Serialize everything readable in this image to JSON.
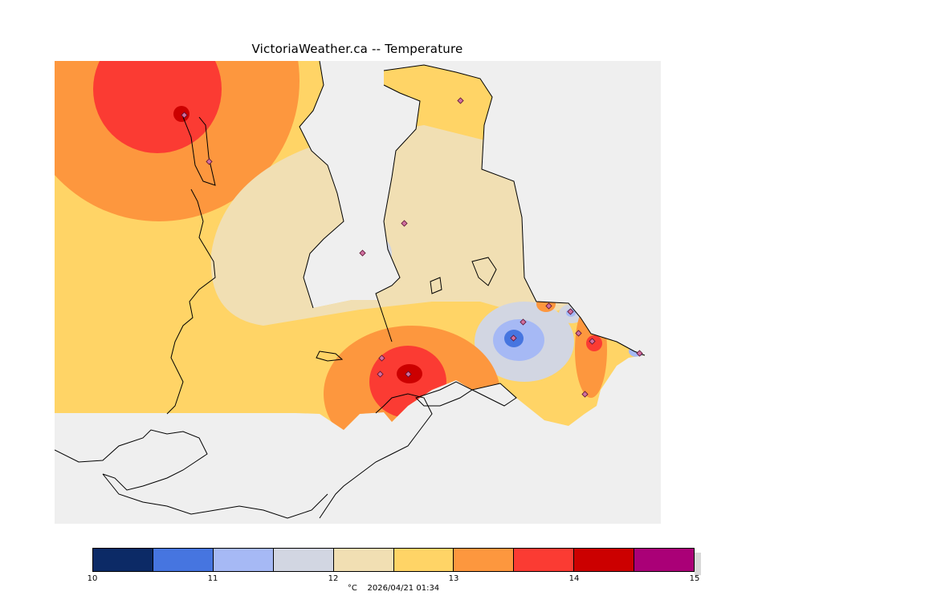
{
  "title": "VictoriaWeather.ca -- Temperature",
  "colorbar": {
    "colors": [
      "#0c2a66",
      "#4675e0",
      "#a6b9f5",
      "#d2d6e2",
      "#f1dfb3",
      "#ffd466",
      "#fd973e",
      "#fb3b33",
      "#cc0000",
      "#aa0077"
    ],
    "ticks": [
      "10",
      "11",
      "12",
      "13",
      "14",
      "15"
    ],
    "range": [
      10,
      15
    ]
  },
  "footer": {
    "unit": "°C",
    "timestamp": "2026/04/21 01:34"
  },
  "map": {
    "ocean_color": "#efefef",
    "land_outside_color": "#ffffff",
    "station_marker_color": "#d070a0"
  }
}
